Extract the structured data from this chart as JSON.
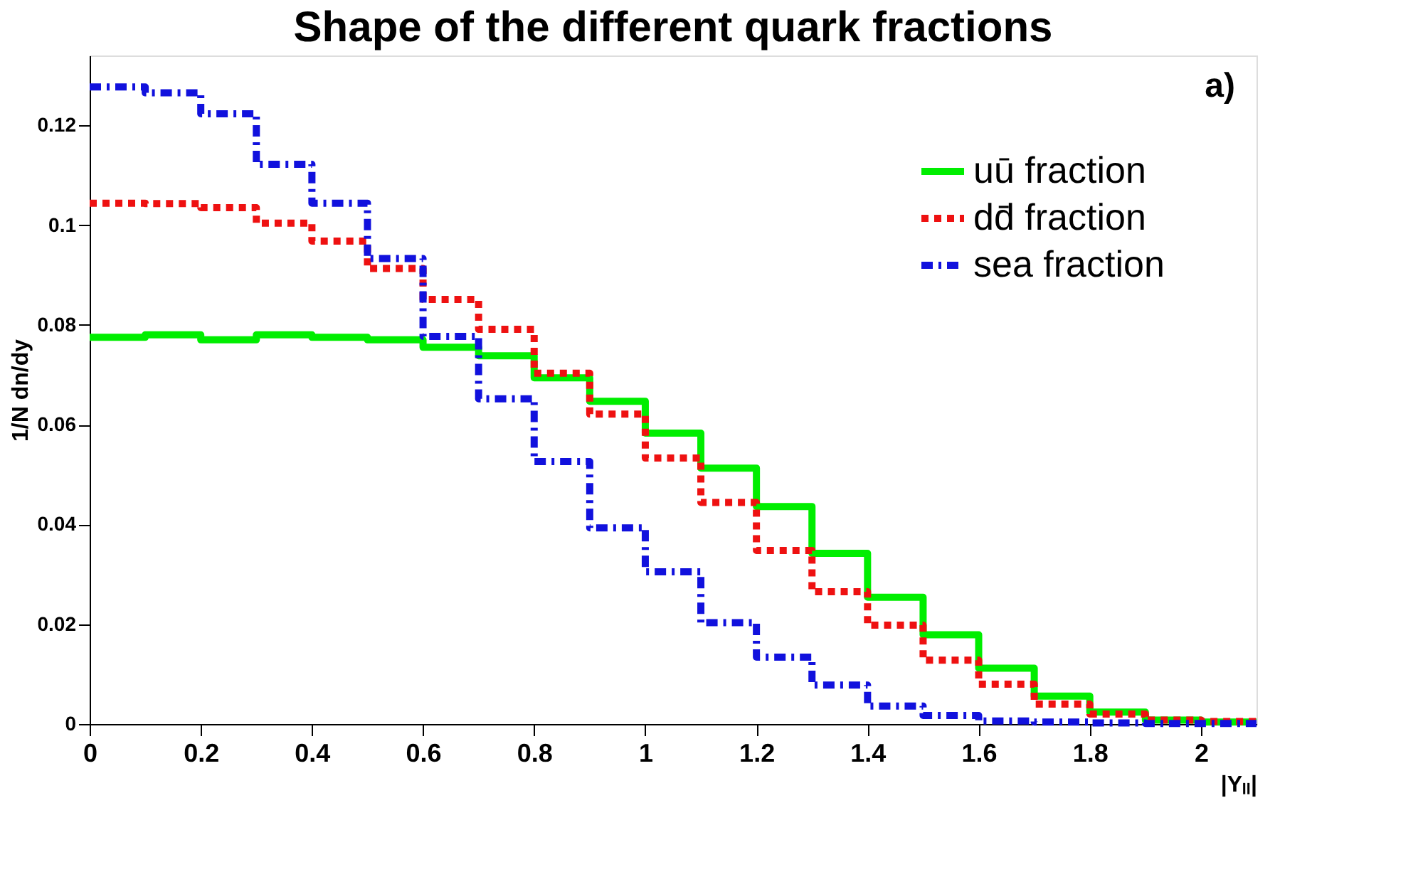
{
  "chart_data": {
    "type": "histogram",
    "title": "Shape of the different quark fractions",
    "xlabel": "|Yₗₗ|",
    "ylabel": "1/N dn/dy",
    "bins": [
      0,
      0.1,
      0.2,
      0.3,
      0.4,
      0.5,
      0.6,
      0.7,
      0.8,
      0.9,
      1.0,
      1.1,
      1.2,
      1.3,
      1.4,
      1.5,
      1.6,
      1.7,
      1.8,
      1.9,
      2.0,
      2.1
    ],
    "series": [
      {
        "name": "uū fraction",
        "color": "#00ee00",
        "line_style": "solid",
        "values": [
          0.0775,
          0.078,
          0.077,
          0.078,
          0.0775,
          0.077,
          0.0755,
          0.0738,
          0.0694,
          0.0647,
          0.0583,
          0.0513,
          0.0436,
          0.0342,
          0.0254,
          0.0179,
          0.0112,
          0.0056,
          0.0024,
          0.0008,
          0.0004
        ]
      },
      {
        "name": "dd̄ fraction",
        "color": "#ee1111",
        "line_style": "dotted",
        "values": [
          0.1044,
          0.1043,
          0.1035,
          0.1004,
          0.0968,
          0.0913,
          0.0851,
          0.0791,
          0.0703,
          0.0621,
          0.0533,
          0.0444,
          0.0348,
          0.0265,
          0.0198,
          0.0128,
          0.008,
          0.004,
          0.002,
          0.0008,
          0.0005
        ]
      },
      {
        "name": "sea fraction",
        "color": "#1111dd",
        "line_style": "dashdot",
        "values": [
          0.1277,
          0.1265,
          0.1223,
          0.1122,
          0.1044,
          0.0933,
          0.0777,
          0.0652,
          0.0526,
          0.0393,
          0.0305,
          0.0203,
          0.0134,
          0.0078,
          0.0036,
          0.0017,
          0.0006,
          0.0004,
          0.0002,
          0.0001,
          0.0001
        ]
      }
    ],
    "xlim": [
      0,
      2.1
    ],
    "xticks": [
      0,
      0.2,
      0.4,
      0.6,
      0.8,
      1,
      1.2,
      1.4,
      1.6,
      1.8,
      2
    ],
    "ylim": [
      0,
      0.134
    ],
    "yticks": [
      0,
      0.02,
      0.04,
      0.06,
      0.08,
      0.1,
      0.12
    ],
    "legend": "top right",
    "grid": false,
    "annotations": [
      "a)"
    ]
  }
}
